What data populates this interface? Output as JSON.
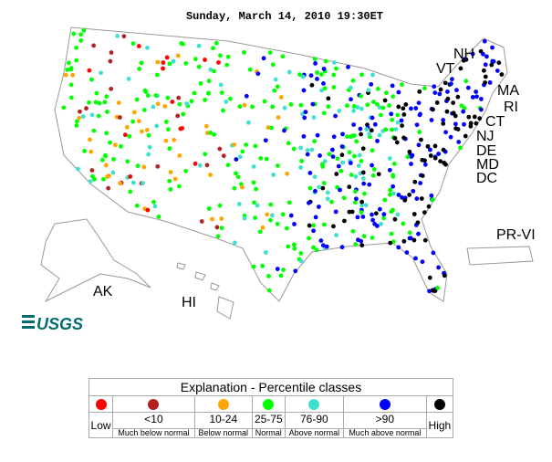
{
  "header": {
    "title": "Sunday, March 14, 2010 19:30ET"
  },
  "labels": [
    "NH",
    "VT",
    "MA",
    "RI",
    "CT",
    "NJ",
    "DE",
    "MD",
    "DC",
    "PR-VI",
    "AK",
    "HI"
  ],
  "logo": "USGS",
  "legend": {
    "title": "Explanation - Percentile classes",
    "classes": [
      {
        "label": "Low",
        "color": "#ff0000"
      },
      {
        "label": "<10",
        "sublabel": "Much below normal",
        "color": "#b22222"
      },
      {
        "label": "10-24",
        "sublabel": "Below normal",
        "color": "#ffa500"
      },
      {
        "label": "25-75",
        "sublabel": "Normal",
        "color": "#00ff00"
      },
      {
        "label": "76-90",
        "sublabel": "Above normal",
        "color": "#40e0d0"
      },
      {
        "label": ">90",
        "sublabel": "Much above normal",
        "color": "#0000ff"
      },
      {
        "label": "High",
        "color": "#000000"
      }
    ]
  }
}
